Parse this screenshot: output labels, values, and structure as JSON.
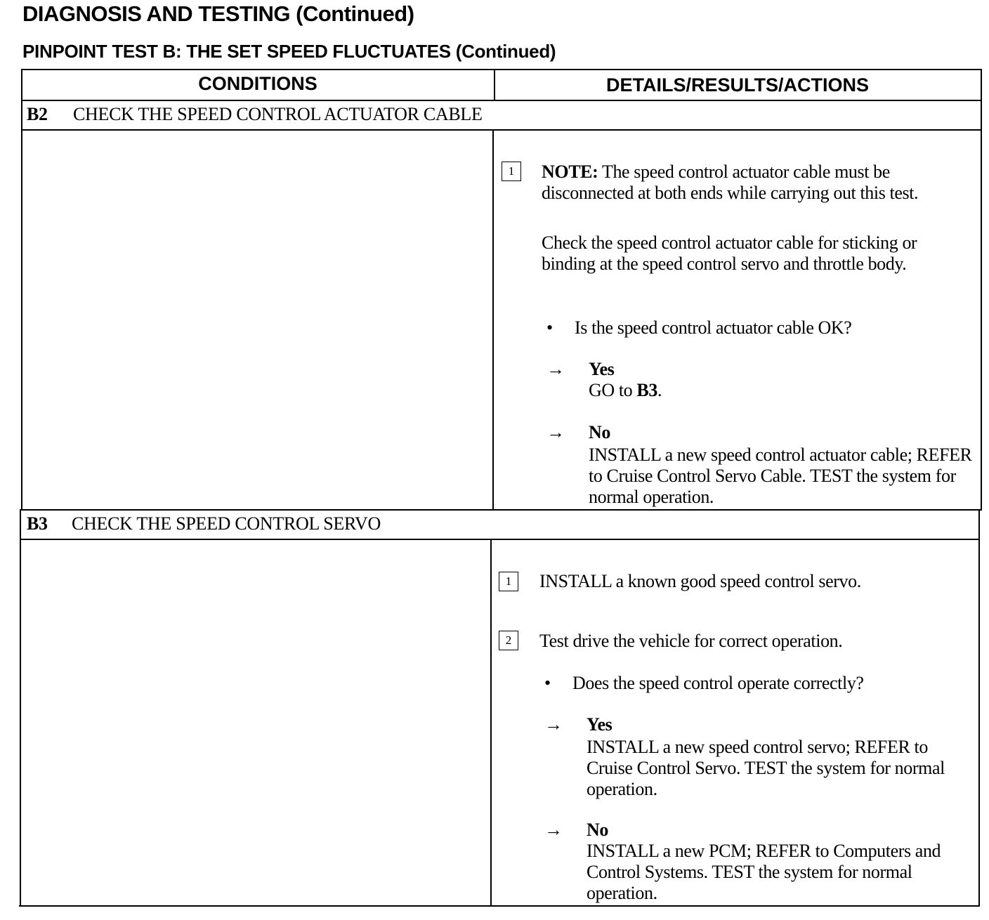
{
  "header": {
    "title": "DIAGNOSIS AND TESTING (Continued)",
    "subtitle": "PINPOINT TEST B:  THE SET SPEED FLUCTUATES (Continued)"
  },
  "table": {
    "columns": [
      "CONDITIONS",
      "DETAILS/RESULTS/ACTIONS"
    ],
    "steps": [
      {
        "id": "B2",
        "title": "CHECK THE SPEED CONTROL ACTUATOR CABLE",
        "sub1": {
          "number": "1",
          "note_label": "NOTE:",
          "note_text": " The speed control actuator cable must be disconnected at both ends while carrying out this test.",
          "text": "Check the speed control actuator cable for sticking or binding at the speed control servo and throttle body.",
          "question": "Is the speed control actuator cable OK?",
          "yes_label": "Yes",
          "yes_action_prefix": "GO to ",
          "yes_action_ref": "B3",
          "yes_action_suffix": ".",
          "no_label": "No",
          "no_action": "INSTALL a new speed control actuator cable; REFER to Cruise Control Servo Cable. TEST the system for normal operation."
        }
      },
      {
        "id": "B3",
        "title": "CHECK THE SPEED CONTROL SERVO",
        "sub1": {
          "number": "1",
          "text": "INSTALL a known good speed control servo."
        },
        "sub2": {
          "number": "2",
          "text": "Test drive the vehicle for correct operation.",
          "question": "Does the speed control operate correctly?",
          "yes_label": "Yes",
          "yes_action": "INSTALL a new speed control servo; REFER to Cruise Control Servo. TEST the system for normal operation.",
          "no_label": "No",
          "no_action": "INSTALL a new PCM; REFER to Computers and Control Systems. TEST the system for normal operation."
        }
      }
    ],
    "bullet": "•",
    "arrow": "→"
  }
}
